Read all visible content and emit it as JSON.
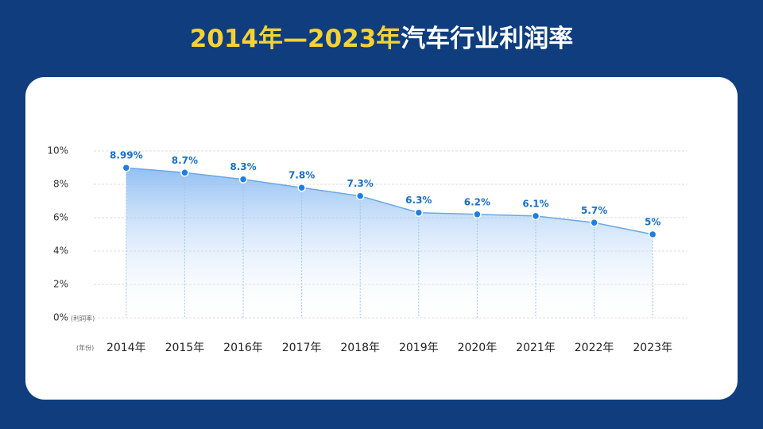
{
  "chart_data": {
    "type": "line",
    "title_highlight": "2014年—2023年",
    "title": "汽车行业利润率",
    "y_label": "(利润率)",
    "x_label": "(年份)",
    "categories": [
      "2014年",
      "2015年",
      "2016年",
      "2017年",
      "2018年",
      "2019年",
      "2020年",
      "2021年",
      "2022年",
      "2023年"
    ],
    "values": [
      8.99,
      8.7,
      8.3,
      7.8,
      7.3,
      6.3,
      6.2,
      6.1,
      5.7,
      5
    ],
    "value_labels": [
      "8.99%",
      "8.7%",
      "8.3%",
      "7.8%",
      "7.3%",
      "6.3%",
      "6.2%",
      "6.1%",
      "5.7%",
      "5%"
    ],
    "color": "#1f7fe0",
    "ylim": [
      0,
      10
    ],
    "yticks": [
      {
        "value": 0,
        "label": "0%"
      },
      {
        "value": 2,
        "label": "2%"
      },
      {
        "value": 4,
        "label": "4%"
      },
      {
        "value": 6,
        "label": "6%"
      },
      {
        "value": 8,
        "label": "8%"
      },
      {
        "value": 10,
        "label": "10%"
      }
    ],
    "grid": true
  }
}
